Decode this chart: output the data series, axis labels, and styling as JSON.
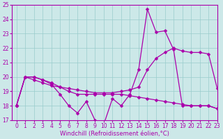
{
  "xlabel": "Windchill (Refroidissement éolien,°C)",
  "x": [
    0,
    1,
    2,
    3,
    4,
    5,
    6,
    7,
    8,
    9,
    10,
    11,
    12,
    13,
    14,
    15,
    16,
    17,
    18,
    19,
    20,
    21,
    22,
    23
  ],
  "y_jagged": [
    18.0,
    20.0,
    20.0,
    19.8,
    19.5,
    18.8,
    18.0,
    17.5,
    18.3,
    17.0,
    16.7,
    18.5,
    18.0,
    18.8,
    20.5,
    24.7,
    23.1,
    23.2,
    21.9,
    18.0,
    18.0,
    18.0,
    18.0,
    17.8
  ],
  "y_flat": [
    18.0,
    20.0,
    20.0,
    19.8,
    19.6,
    19.3,
    19.0,
    18.8,
    18.8,
    18.8,
    18.8,
    18.8,
    18.8,
    18.7,
    18.6,
    18.5,
    18.4,
    18.3,
    18.2,
    18.1,
    18.0,
    18.0,
    18.0,
    17.8
  ],
  "y_rising": [
    18.0,
    20.0,
    19.8,
    19.6,
    19.4,
    19.3,
    19.2,
    19.1,
    19.0,
    18.9,
    18.9,
    18.9,
    19.0,
    19.1,
    19.3,
    20.5,
    21.3,
    21.7,
    22.0,
    21.8,
    21.7,
    21.7,
    21.6,
    19.2
  ],
  "color": "#aa00aa",
  "bg_color": "#cce8e8",
  "grid_color": "#99cccc",
  "ylim": [
    17,
    25
  ],
  "xlim": [
    -0.5,
    23
  ],
  "yticks": [
    17,
    18,
    19,
    20,
    21,
    22,
    23,
    24,
    25
  ],
  "xticks": [
    0,
    1,
    2,
    3,
    4,
    5,
    6,
    7,
    8,
    9,
    10,
    11,
    12,
    13,
    14,
    15,
    16,
    17,
    18,
    19,
    20,
    21,
    22,
    23
  ],
  "xlabel_fontsize": 6,
  "tick_fontsize": 5.5,
  "linewidth": 0.9,
  "markersize": 2.5
}
